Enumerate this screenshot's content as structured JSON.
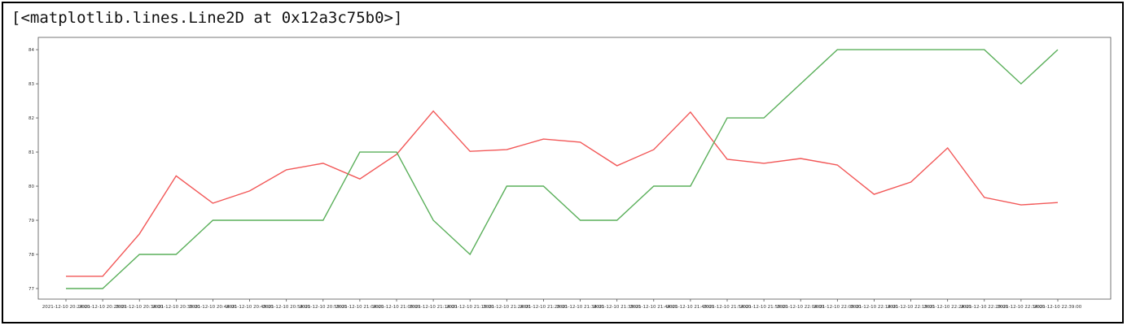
{
  "output_text": "[<matplotlib.lines.Line2D at 0x12a3c75b0>]",
  "chart_data": {
    "type": "line",
    "categories": [
      "2021-12-10 20:24:00",
      "2021-12-10 20:29:00",
      "2021-12-10 20:34:00",
      "2021-12-10 20:39:00",
      "2021-12-10 20:44:00",
      "2021-12-10 20:49:00",
      "2021-12-10 20:54:00",
      "2021-12-10 20:59:00",
      "2021-12-10 21:04:00",
      "2021-12-10 21:09:00",
      "2021-12-10 21:14:00",
      "2021-12-10 21:19:00",
      "2021-12-10 21:24:00",
      "2021-12-10 21:29:00",
      "2021-12-10 21:34:00",
      "2021-12-10 21:39:00",
      "2021-12-10 21:44:00",
      "2021-12-10 21:49:00",
      "2021-12-10 21:54:00",
      "2021-12-10 21:59:00",
      "2021-12-10 22:04:00",
      "2021-12-10 22:09:00",
      "2021-12-10 22:14:00",
      "2021-12-10 22:19:00",
      "2021-12-10 22:24:00",
      "2021-12-10 22:29:00",
      "2021-12-10 22:34:00",
      "2021-12-10 22:39:00"
    ],
    "series": [
      {
        "color": "#f25757",
        "values": [
          77.36,
          77.36,
          78.6,
          80.3,
          79.5,
          79.86,
          80.48,
          80.67,
          80.21,
          80.93,
          82.2,
          81.02,
          81.07,
          81.38,
          81.29,
          80.6,
          81.07,
          82.17,
          80.79,
          80.67,
          80.81,
          80.62,
          79.76,
          80.12,
          81.12,
          79.67,
          79.45,
          79.52
        ]
      },
      {
        "color": "#5aaf5a",
        "values": [
          77,
          77,
          78,
          78,
          79,
          79,
          79,
          79,
          81,
          81,
          79,
          78,
          80,
          80,
          79,
          79,
          80,
          80,
          82,
          82,
          83,
          84,
          84,
          84,
          84,
          84,
          83,
          84
        ]
      }
    ],
    "ylim": [
      76.69,
      84.36
    ],
    "yticks": [
      77,
      78,
      79,
      80,
      81,
      82,
      83,
      84
    ]
  }
}
